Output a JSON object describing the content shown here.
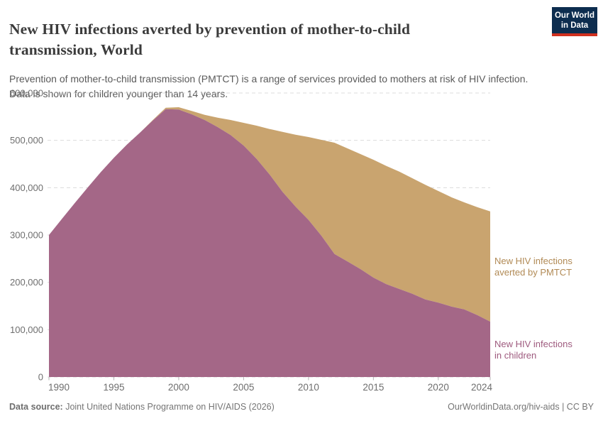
{
  "header": {
    "title_lines": [
      "New HIV infections averted by prevention of mother-to-child",
      "transmission, World"
    ],
    "subtitle_lines": [
      "Prevention of mother-to-child transmission (PMTCT) is a range of services provided to mothers at risk of HIV infection.",
      "Data is shown for children younger than 14 years."
    ],
    "logo_lines": [
      "Our World",
      "in Data"
    ]
  },
  "colors": {
    "children_fill": "#a46787",
    "averted_fill": "#c9a46f",
    "children_label": "#9e5a7e",
    "averted_label": "#b18a55",
    "gridline": "#dcdcdc",
    "tick_text": "#6e6e6e",
    "logo_navy": "#0d2d4f",
    "logo_red": "#d0301f"
  },
  "chart_data": {
    "type": "area",
    "stacked": true,
    "title": "New HIV infections averted by prevention of mother-to-child transmission, World",
    "xlabel": "",
    "ylabel": "",
    "ylim": [
      0,
      600000
    ],
    "xlim": [
      1990,
      2024
    ],
    "grid": "horizontal-dashed",
    "legend_position": "right-of-plot",
    "x": [
      1990,
      1991,
      1992,
      1993,
      1994,
      1995,
      1996,
      1997,
      1998,
      1999,
      2000,
      2001,
      2002,
      2003,
      2004,
      2005,
      2006,
      2007,
      2008,
      2009,
      2010,
      2011,
      2012,
      2013,
      2014,
      2015,
      2016,
      2017,
      2018,
      2019,
      2020,
      2021,
      2022,
      2023,
      2024
    ],
    "series": [
      {
        "name": "New HIV infections in children",
        "color": "#a46787",
        "values": [
          300000,
          334000,
          368000,
          401000,
          433000,
          463000,
          491000,
          516000,
          542000,
          566000,
          565000,
          555000,
          543000,
          528000,
          511000,
          489000,
          461000,
          428000,
          391000,
          360000,
          332000,
          298000,
          260000,
          244000,
          228000,
          210000,
          196000,
          186000,
          176000,
          164000,
          157000,
          149000,
          143000,
          131000,
          117000
        ]
      },
      {
        "name": "New HIV infections averted by PMTCT",
        "color": "#c9a46f",
        "values": [
          0,
          0,
          0,
          0,
          0,
          0,
          0,
          0,
          1000,
          3000,
          5000,
          7000,
          11000,
          20000,
          32000,
          48000,
          70000,
          96000,
          127000,
          152000,
          175000,
          203000,
          235000,
          239000,
          243000,
          249000,
          250000,
          248000,
          244000,
          242000,
          236000,
          231000,
          226000,
          228000,
          233000
        ]
      }
    ],
    "y_ticks": [
      {
        "value": 0,
        "label": "0"
      },
      {
        "value": 100000,
        "label": "100,000"
      },
      {
        "value": 200000,
        "label": "200,000"
      },
      {
        "value": 300000,
        "label": "300,000"
      },
      {
        "value": 400000,
        "label": "400,000"
      },
      {
        "value": 500000,
        "label": "500,000"
      },
      {
        "value": 600000,
        "label": "600,000"
      }
    ],
    "x_ticks": [
      1990,
      1995,
      2000,
      2005,
      2010,
      2015,
      2020,
      2024
    ]
  },
  "legend": {
    "averted_lines": [
      "New HIV infections",
      "averted by PMTCT"
    ],
    "children_lines": [
      "New HIV infections",
      "in children"
    ]
  },
  "footer": {
    "source_label": "Data source:",
    "source_text": " Joint United Nations Programme on HIV/AIDS (2026)",
    "rights": "OurWorldinData.org/hiv-aids | CC BY"
  }
}
